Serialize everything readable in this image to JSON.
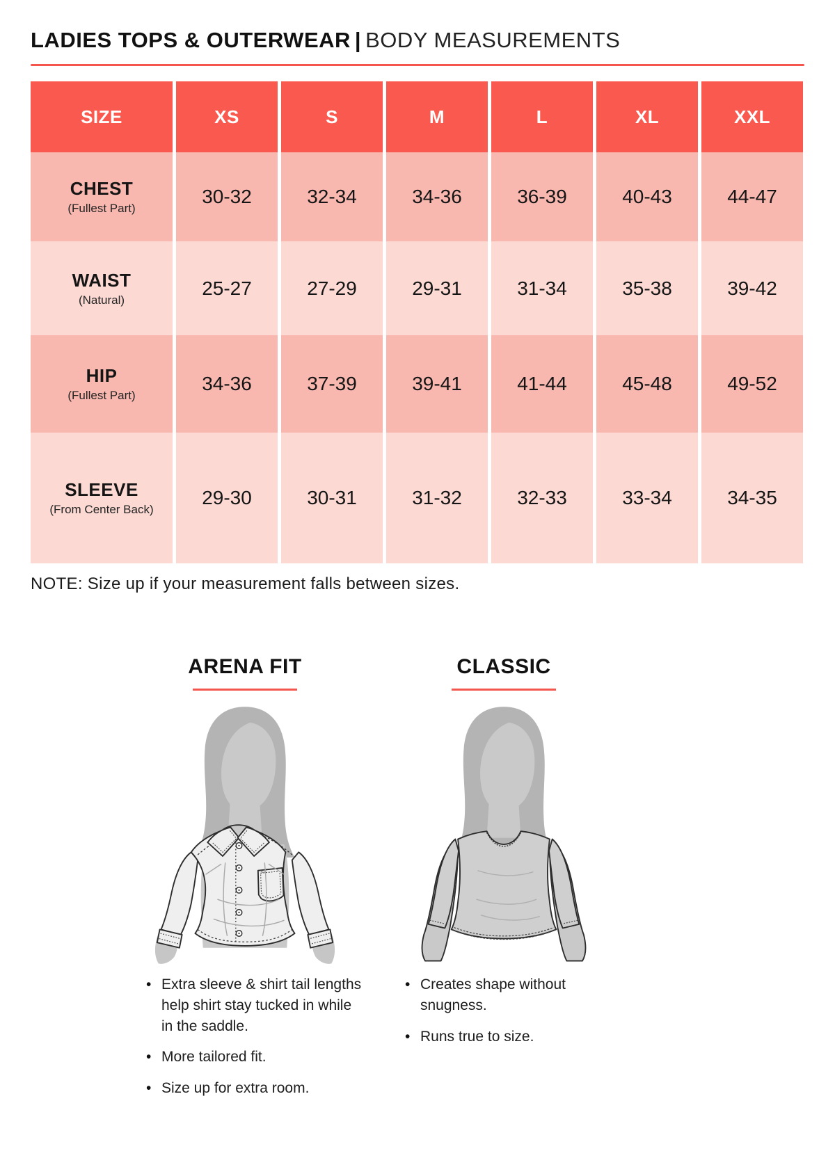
{
  "page": {
    "title_bold": "LADIES TOPS & OUTERWEAR",
    "title_separator": "|",
    "title_light": "BODY MEASUREMENTS",
    "note": "NOTE: Size up if your measurement falls between sizes."
  },
  "colors": {
    "accent_red": "#f4564e",
    "table_header_bg": "#f9594f",
    "row_pink_dark": "#f9b8af",
    "row_pink_light": "#fcd9d2"
  },
  "size_table": {
    "columns": [
      "SIZE",
      "XS",
      "S",
      "M",
      "L",
      "XL",
      "XXL"
    ],
    "rows": [
      {
        "label": "CHEST",
        "sublabel": "(Fullest Part)",
        "values": [
          "30-32",
          "32-34",
          "34-36",
          "36-39",
          "40-43",
          "44-47"
        ]
      },
      {
        "label": "WAIST",
        "sublabel": "(Natural)",
        "values": [
          "25-27",
          "27-29",
          "29-31",
          "31-34",
          "35-38",
          "39-42"
        ]
      },
      {
        "label": "HIP",
        "sublabel": "(Fullest Part)",
        "values": [
          "34-36",
          "37-39",
          "39-41",
          "41-44",
          "45-48",
          "49-52"
        ]
      },
      {
        "label": "SLEEVE",
        "sublabel": "(From Center Back)",
        "values": [
          "29-30",
          "30-31",
          "31-32",
          "32-33",
          "33-34",
          "34-35"
        ]
      }
    ]
  },
  "fits": [
    {
      "name": "ARENA FIT",
      "figure": "ladies-button-down-shirt-illustration",
      "bullets": [
        "Extra sleeve & shirt tail lengths help shirt stay tucked in while in the saddle.",
        "More tailored fit.",
        "Size up for extra room."
      ]
    },
    {
      "name": "CLASSIC",
      "figure": "ladies-fitted-top-illustration",
      "bullets": [
        "Creates shape without snugness.",
        "Runs true to size."
      ]
    }
  ]
}
